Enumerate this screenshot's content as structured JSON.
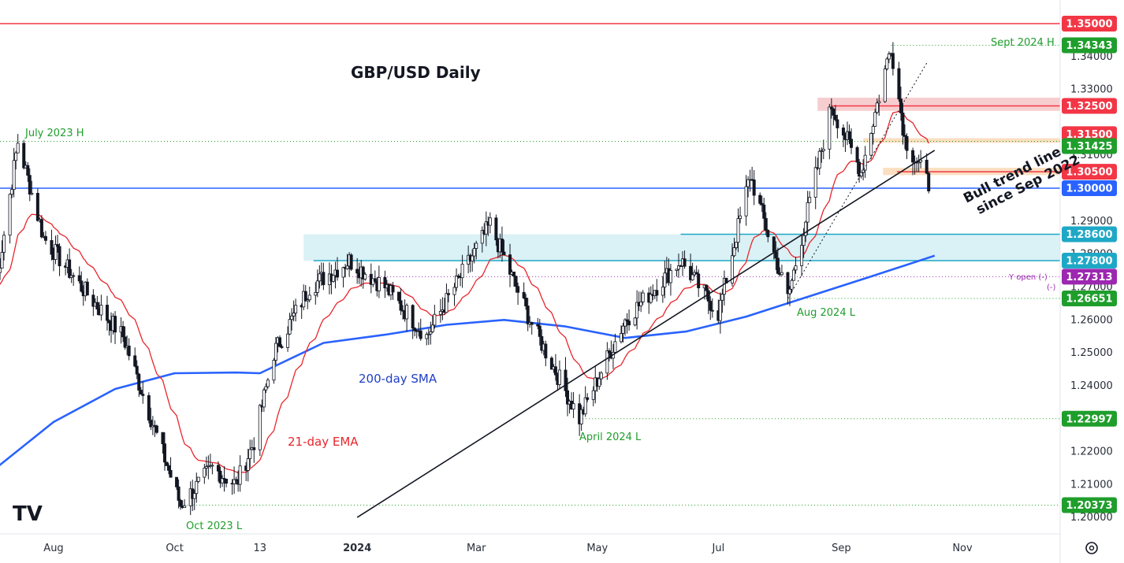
{
  "chart_data": {
    "type": "candlestick",
    "title": "GBP/USD Daily",
    "ylim": [
      1.195,
      1.3555
    ],
    "y_ticks": [
      "1.34000",
      "1.33000",
      "1.31000",
      "1.29000",
      "1.28000",
      "1.27000",
      "1.26000",
      "1.25000",
      "1.24000",
      "1.22000",
      "1.21000",
      "1.20000"
    ],
    "x_ticks": [
      "Aug",
      "Oct",
      "13",
      "2024",
      "Mar",
      "May",
      "Jul",
      "Sep",
      "Nov"
    ],
    "grid": false,
    "ohlc_waypoints": [
      {
        "date": "2023-07-03",
        "close": 1.27
      },
      {
        "date": "2023-07-14",
        "close": 1.3142
      },
      {
        "date": "2023-07-27",
        "close": 1.285
      },
      {
        "date": "2023-08-15",
        "close": 1.27
      },
      {
        "date": "2023-09-05",
        "close": 1.255
      },
      {
        "date": "2023-10-04",
        "close": 1.2037
      },
      {
        "date": "2023-10-20",
        "close": 1.215
      },
      {
        "date": "2023-11-01",
        "close": 1.21
      },
      {
        "date": "2023-11-10",
        "close": 1.223
      },
      {
        "date": "2023-11-20",
        "close": 1.25
      },
      {
        "date": "2023-12-08",
        "close": 1.27
      },
      {
        "date": "2023-12-28",
        "close": 1.278
      },
      {
        "date": "2024-01-15",
        "close": 1.27
      },
      {
        "date": "2024-02-05",
        "close": 1.255
      },
      {
        "date": "2024-03-08",
        "close": 1.289
      },
      {
        "date": "2024-03-28",
        "close": 1.26
      },
      {
        "date": "2024-04-22",
        "close": 1.23
      },
      {
        "date": "2024-05-15",
        "close": 1.26
      },
      {
        "date": "2024-06-12",
        "close": 1.278
      },
      {
        "date": "2024-07-01",
        "close": 1.262
      },
      {
        "date": "2024-07-17",
        "close": 1.304
      },
      {
        "date": "2024-08-05",
        "close": 1.2665
      },
      {
        "date": "2024-08-27",
        "close": 1.325
      },
      {
        "date": "2024-09-11",
        "close": 1.305
      },
      {
        "date": "2024-09-26",
        "close": 1.3434
      },
      {
        "date": "2024-10-03",
        "close": 1.315
      },
      {
        "date": "2024-10-16",
        "close": 1.3
      }
    ],
    "series": [
      {
        "name": "21-day EMA",
        "color": "#e8262b"
      },
      {
        "name": "200-day SMA",
        "color": "#2962ff"
      }
    ],
    "levels": [
      {
        "value": 1.35,
        "label": "1.35000",
        "color": "#f23645",
        "style": "solid"
      },
      {
        "value": 1.34343,
        "label": "1.34343",
        "color": "#1f9e2c",
        "style": "dotted"
      },
      {
        "value": 1.325,
        "label": "1.32500",
        "color": "#f23645",
        "style": "solid"
      },
      {
        "value": 1.315,
        "label": "1.31500",
        "color": "#f23645",
        "style": "none"
      },
      {
        "value": 1.31425,
        "label": "1.31425",
        "color": "#1f9e2c",
        "style": "dotted"
      },
      {
        "value": 1.305,
        "label": "1.30500",
        "color": "#f23645",
        "style": "solid"
      },
      {
        "value": 1.3,
        "label": "1.30000",
        "color": "#2962ff",
        "style": "solid"
      },
      {
        "value": 1.286,
        "label": "1.28600",
        "color": "#1fa8c6",
        "style": "solid"
      },
      {
        "value": 1.278,
        "label": "1.27800",
        "color": "#1fa8c6",
        "style": "solid"
      },
      {
        "value": 1.27313,
        "label": "1.27313",
        "color": "#9c27b0",
        "style": "dotted"
      },
      {
        "value": 1.26651,
        "label": "1.26651",
        "color": "#1f9e2c",
        "style": "dotted"
      },
      {
        "value": 1.22997,
        "label": "1.22997",
        "color": "#1f9e2c",
        "style": "dotted"
      },
      {
        "value": 1.20373,
        "label": "1.20373",
        "color": "#1f9e2c",
        "style": "dotted"
      }
    ],
    "zones": [
      {
        "from": 1.3235,
        "to": 1.3275,
        "start": "2024-08-20",
        "color": "#f6c5c8"
      },
      {
        "from": 1.3138,
        "to": 1.3152,
        "start": "2024-09-12",
        "color": "#f9d9b5"
      },
      {
        "from": 1.304,
        "to": 1.3062,
        "start": "2024-09-22",
        "color": "#f9d9b5"
      },
      {
        "from": 1.278,
        "to": 1.286,
        "start": "2023-12-05",
        "color": "#d3eef5"
      }
    ],
    "trendline": {
      "label": "Bull trend line since Sep 2022",
      "from": {
        "date": "2024-01-01",
        "value": 1.2
      },
      "to": {
        "date": "2024-10-18",
        "value": 1.3115
      }
    },
    "annotations": [
      {
        "text": "Sept 2024 H",
        "color": "#1f9e2c"
      },
      {
        "text": "July 2023 H",
        "color": "#1f9e2c"
      },
      {
        "text": "Oct 2023 L",
        "color": "#1f9e2c"
      },
      {
        "text": "April 2024 L",
        "color": "#1f9e2c"
      },
      {
        "text": "Aug 2024 L",
        "color": "#1f9e2c"
      },
      {
        "text": "Y open (-)",
        "color": "#9c27b0"
      },
      {
        "text": "(-)",
        "color": "#9c27b0"
      },
      {
        "text": "200-day SMA",
        "color": "#1f3fc7"
      },
      {
        "text": "21-day EMA",
        "color": "#e8262b"
      }
    ]
  },
  "ui": {
    "watermark_icon": "tradingview-logo-icon",
    "settings_icon": "gear-icon"
  }
}
